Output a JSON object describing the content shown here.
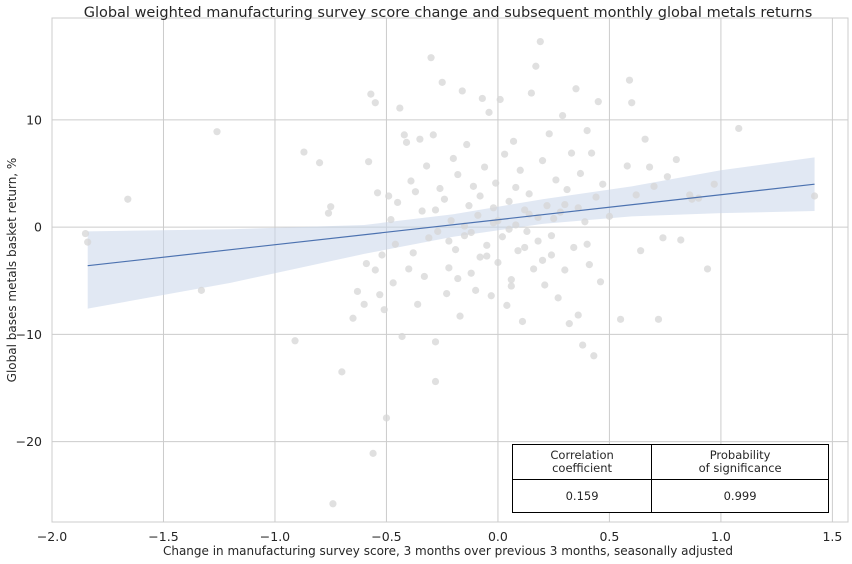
{
  "chart_data": {
    "type": "scatter",
    "title": "Global weighted manufacturing survey score change and subsequent monthly global metals returns",
    "xlabel": "Change in manufacturing survey score, 3 months over previous 3 months, seasonally adjusted",
    "ylabel": "Global bases metals basket return, %",
    "xlim": [
      -2.0,
      1.57
    ],
    "ylim": [
      -27.5,
      19.5
    ],
    "xticks": [
      -2.0,
      -1.5,
      -1.0,
      -0.5,
      0.0,
      0.5,
      1.0,
      1.5
    ],
    "xtick_labels": [
      "−2.0",
      "−1.5",
      "−1.0",
      "−0.5",
      "0.0",
      "0.5",
      "1.0",
      "1.5"
    ],
    "yticks": [
      -20,
      -10,
      0,
      10
    ],
    "ytick_labels": [
      "−20",
      "−10",
      "0",
      "10"
    ],
    "grid": true,
    "regression": {
      "x": [
        -1.84,
        1.42
      ],
      "y": [
        -3.6,
        4.0
      ],
      "ci_lower": [
        -7.6,
        -5.2,
        -2.5,
        -0.9,
        0.3,
        1.0,
        1.3,
        1.5
      ],
      "ci_upper": [
        -0.4,
        -0.2,
        0.2,
        1.2,
        2.6,
        3.8,
        5.3,
        6.5
      ],
      "ci_x": [
        -1.84,
        -1.2,
        -0.6,
        -0.2,
        0.2,
        0.6,
        1.0,
        1.42
      ]
    },
    "points": [
      [
        -1.85,
        -0.6
      ],
      [
        -1.84,
        -1.4
      ],
      [
        -1.66,
        2.6
      ],
      [
        -1.33,
        -5.9
      ],
      [
        -1.26,
        8.9
      ],
      [
        -0.91,
        -10.6
      ],
      [
        -0.87,
        7.0
      ],
      [
        -0.8,
        6.0
      ],
      [
        -0.76,
        1.3
      ],
      [
        -0.75,
        1.9
      ],
      [
        -0.74,
        -25.8
      ],
      [
        -0.7,
        -13.5
      ],
      [
        -0.65,
        -8.5
      ],
      [
        -0.63,
        -6.0
      ],
      [
        -0.6,
        -7.2
      ],
      [
        -0.59,
        -3.4
      ],
      [
        -0.58,
        6.1
      ],
      [
        -0.57,
        12.4
      ],
      [
        -0.56,
        -21.1
      ],
      [
        -0.55,
        11.6
      ],
      [
        -0.55,
        -4.0
      ],
      [
        -0.54,
        3.2
      ],
      [
        -0.53,
        -6.3
      ],
      [
        -0.52,
        -2.6
      ],
      [
        -0.51,
        -7.7
      ],
      [
        -0.5,
        -17.8
      ],
      [
        -0.49,
        2.9
      ],
      [
        -0.48,
        0.7
      ],
      [
        -0.47,
        -5.2
      ],
      [
        -0.46,
        -1.6
      ],
      [
        -0.45,
        2.3
      ],
      [
        -0.44,
        11.1
      ],
      [
        -0.43,
        -10.2
      ],
      [
        -0.42,
        8.6
      ],
      [
        -0.41,
        7.9
      ],
      [
        -0.4,
        -3.9
      ],
      [
        -0.39,
        4.3
      ],
      [
        -0.38,
        -2.4
      ],
      [
        -0.37,
        3.3
      ],
      [
        -0.36,
        -7.2
      ],
      [
        -0.35,
        8.2
      ],
      [
        -0.34,
        1.5
      ],
      [
        -0.33,
        -4.6
      ],
      [
        -0.32,
        5.7
      ],
      [
        -0.31,
        -1.0
      ],
      [
        -0.3,
        15.8
      ],
      [
        -0.29,
        8.6
      ],
      [
        -0.28,
        -14.4
      ],
      [
        -0.28,
        -10.7
      ],
      [
        -0.27,
        -0.4
      ],
      [
        -0.26,
        3.6
      ],
      [
        -0.25,
        13.5
      ],
      [
        -0.24,
        2.6
      ],
      [
        -0.23,
        -6.2
      ],
      [
        -0.22,
        -3.8
      ],
      [
        -0.21,
        0.6
      ],
      [
        -0.2,
        6.4
      ],
      [
        -0.19,
        -2.1
      ],
      [
        -0.18,
        4.9
      ],
      [
        -0.17,
        -8.3
      ],
      [
        -0.16,
        12.7
      ],
      [
        -0.15,
        -0.8
      ],
      [
        -0.14,
        7.7
      ],
      [
        -0.13,
        2.0
      ],
      [
        -0.12,
        -4.3
      ],
      [
        -0.11,
        3.8
      ],
      [
        -0.1,
        -5.9
      ],
      [
        -0.09,
        1.1
      ],
      [
        -0.08,
        -2.8
      ],
      [
        -0.07,
        12.0
      ],
      [
        -0.06,
        5.6
      ],
      [
        -0.05,
        -1.7
      ],
      [
        -0.04,
        10.7
      ],
      [
        -0.03,
        -6.4
      ],
      [
        -0.02,
        0.4
      ],
      [
        -0.01,
        4.1
      ],
      [
        0.0,
        -3.3
      ],
      [
        0.01,
        11.9
      ],
      [
        0.02,
        -0.9
      ],
      [
        0.03,
        6.8
      ],
      [
        0.04,
        -7.3
      ],
      [
        0.05,
        2.4
      ],
      [
        0.06,
        -4.9
      ],
      [
        0.07,
        8.0
      ],
      [
        0.08,
        0.2
      ],
      [
        0.09,
        -2.2
      ],
      [
        0.1,
        5.3
      ],
      [
        0.11,
        -8.8
      ],
      [
        0.12,
        1.6
      ],
      [
        0.13,
        -0.4
      ],
      [
        0.14,
        3.1
      ],
      [
        0.15,
        12.5
      ],
      [
        0.16,
        -3.9
      ],
      [
        0.17,
        15.0
      ],
      [
        0.18,
        -1.3
      ],
      [
        0.19,
        17.3
      ],
      [
        0.2,
        6.2
      ],
      [
        0.21,
        -5.4
      ],
      [
        0.22,
        2.0
      ],
      [
        0.23,
        8.7
      ],
      [
        0.24,
        -2.6
      ],
      [
        0.25,
        0.8
      ],
      [
        0.26,
        4.4
      ],
      [
        0.27,
        -6.6
      ],
      [
        0.28,
        1.4
      ],
      [
        0.29,
        10.4
      ],
      [
        0.3,
        -4.0
      ],
      [
        0.31,
        3.5
      ],
      [
        0.32,
        -9.0
      ],
      [
        0.33,
        6.9
      ],
      [
        0.34,
        -1.9
      ],
      [
        0.35,
        12.9
      ],
      [
        0.36,
        -8.2
      ],
      [
        0.37,
        5.0
      ],
      [
        0.38,
        -11.0
      ],
      [
        0.39,
        0.5
      ],
      [
        0.4,
        9.0
      ],
      [
        0.41,
        -3.5
      ],
      [
        0.42,
        6.9
      ],
      [
        0.43,
        -12.0
      ],
      [
        0.44,
        2.8
      ],
      [
        0.45,
        11.7
      ],
      [
        0.46,
        -5.1
      ],
      [
        0.47,
        4.0
      ],
      [
        0.5,
        1.0
      ],
      [
        0.55,
        -8.6
      ],
      [
        0.58,
        5.7
      ],
      [
        0.59,
        13.7
      ],
      [
        0.6,
        11.6
      ],
      [
        0.62,
        3.0
      ],
      [
        0.64,
        -2.2
      ],
      [
        0.66,
        8.2
      ],
      [
        0.68,
        5.6
      ],
      [
        0.7,
        3.8
      ],
      [
        0.72,
        -8.6
      ],
      [
        0.74,
        -1.0
      ],
      [
        0.76,
        4.7
      ],
      [
        0.8,
        6.3
      ],
      [
        0.82,
        -1.2
      ],
      [
        0.86,
        3.0
      ],
      [
        0.87,
        2.6
      ],
      [
        0.9,
        2.7
      ],
      [
        0.94,
        -3.9
      ],
      [
        0.97,
        4.0
      ],
      [
        1.08,
        9.2
      ],
      [
        1.42,
        2.9
      ],
      [
        -0.02,
        1.8
      ],
      [
        0.05,
        -0.2
      ],
      [
        0.12,
        -1.9
      ],
      [
        -0.08,
        2.9
      ],
      [
        0.18,
        0.9
      ],
      [
        -0.15,
        0.1
      ],
      [
        0.24,
        -0.8
      ],
      [
        0.08,
        3.7
      ],
      [
        -0.22,
        -1.3
      ],
      [
        0.3,
        2.1
      ],
      [
        0.0,
        0.6
      ],
      [
        -0.05,
        -2.7
      ],
      [
        0.14,
        1.2
      ],
      [
        -0.12,
        -0.5
      ],
      [
        0.2,
        -3.1
      ],
      [
        0.36,
        1.8
      ],
      [
        -0.28,
        1.6
      ],
      [
        0.4,
        -1.6
      ],
      [
        0.06,
        -5.5
      ],
      [
        -0.18,
        -4.8
      ]
    ],
    "stats_table": {
      "headers": [
        "Correlation\ncoefficient",
        "Probability\nof significance"
      ],
      "values": [
        "0.159",
        "0.999"
      ]
    }
  }
}
